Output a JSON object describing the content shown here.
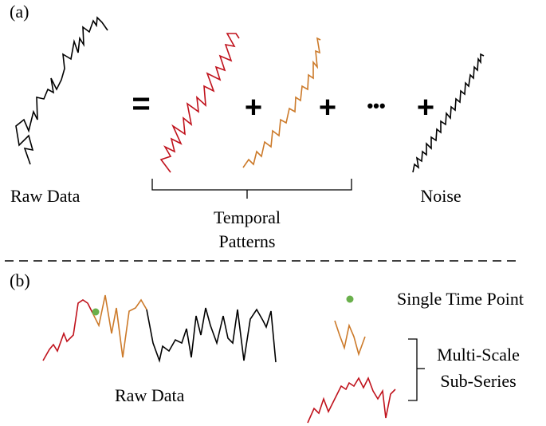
{
  "panel_a": {
    "label": "(a)",
    "raw_label": "Raw Data",
    "equals": "=",
    "plus": "+",
    "ellipsis": "•••",
    "patterns_line1": "Temporal",
    "patterns_line2": "Patterns",
    "noise_label": "Noise"
  },
  "panel_b": {
    "label": "(b)",
    "raw_label": "Raw Data",
    "single_point_label": "Single Time Point",
    "multiscale_line1": "Multi-Scale",
    "multiscale_line2": "Sub-Series"
  },
  "colors": {
    "raw": "#000000",
    "pattern_red": "#c0121c",
    "pattern_orange": "#cc7a2a",
    "noise": "#000000",
    "point_green": "#6ab04c"
  }
}
